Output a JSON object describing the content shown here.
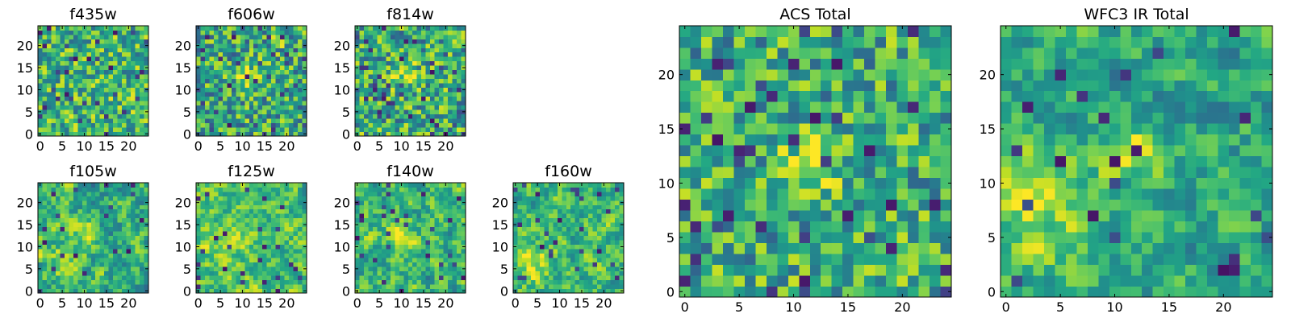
{
  "chart_data": [
    {
      "type": "heatmap",
      "title": "f435w",
      "xticks": [
        0,
        5,
        10,
        15,
        20
      ],
      "yticks": [
        0,
        5,
        10,
        15,
        20
      ],
      "xlim": [
        -0.5,
        24.5
      ],
      "ylim": [
        -0.5,
        24.5
      ],
      "grid": false,
      "colormap": "viridis",
      "values": "25x25 grid of intensities; mostly mid-range green/yellow noise with scattered dark-blue low pixels, no strong central source"
    },
    {
      "type": "heatmap",
      "title": "f606w",
      "xticks": [
        0,
        5,
        10,
        15,
        20
      ],
      "yticks": [
        0,
        5,
        10,
        15,
        20
      ],
      "xlim": [
        -0.5,
        24.5
      ],
      "ylim": [
        -0.5,
        24.5
      ],
      "grid": false,
      "colormap": "viridis",
      "values": "25x25 grid; noisy background with a slight bright patch near x≈12, y≈13"
    },
    {
      "type": "heatmap",
      "title": "f814w",
      "xticks": [
        0,
        5,
        10,
        15,
        20
      ],
      "yticks": [
        0,
        5,
        10,
        15,
        20
      ],
      "xlim": [
        -0.5,
        24.5
      ],
      "ylim": [
        -0.5,
        24.5
      ],
      "grid": false,
      "colormap": "viridis",
      "values": "25x25 grid; noisy background with a faint bright patch near x≈11, y≈13"
    },
    {
      "type": "heatmap",
      "title": "f105w",
      "xticks": [
        0,
        5,
        10,
        15,
        20
      ],
      "yticks": [
        0,
        5,
        10,
        15,
        20
      ],
      "xlim": [
        -0.5,
        24.5
      ],
      "ylim": [
        -0.5,
        24.5
      ],
      "grid": false,
      "colormap": "viridis",
      "values": "25x25 grid; smoother texture, bright clump near x≈11, y≈13 and bright lower-left region"
    },
    {
      "type": "heatmap",
      "title": "f125w",
      "xticks": [
        0,
        5,
        10,
        15,
        20
      ],
      "yticks": [
        0,
        5,
        10,
        15,
        20
      ],
      "xlim": [
        -0.5,
        24.5
      ],
      "ylim": [
        -0.5,
        24.5
      ],
      "grid": false,
      "colormap": "viridis",
      "values": "25x25 grid; smooth yellow-green field, brightest toward left-center"
    },
    {
      "type": "heatmap",
      "title": "f140w",
      "xticks": [
        0,
        5,
        10,
        15,
        20
      ],
      "yticks": [
        0,
        5,
        10,
        15,
        20
      ],
      "xlim": [
        -0.5,
        24.5
      ],
      "ylim": [
        -0.5,
        24.5
      ],
      "grid": false,
      "colormap": "viridis",
      "values": "25x25 grid; bright band near y≈13 across center"
    },
    {
      "type": "heatmap",
      "title": "f160w",
      "xticks": [
        0,
        5,
        10,
        15,
        20
      ],
      "yticks": [
        0,
        5,
        10,
        15,
        20
      ],
      "xlim": [
        -0.5,
        24.5
      ],
      "ylim": [
        -0.5,
        24.5
      ],
      "grid": false,
      "colormap": "viridis",
      "values": "25x25 grid; bright blob near x≈5, y≈6"
    },
    {
      "type": "heatmap",
      "title": "ACS Total",
      "xticks": [
        0,
        5,
        10,
        15,
        20
      ],
      "yticks": [
        0,
        5,
        10,
        15,
        20
      ],
      "xlim": [
        -0.5,
        24.5
      ],
      "ylim": [
        -0.5,
        24.5
      ],
      "grid": false,
      "colormap": "viridis",
      "values": "25x25 grid; bright source near x≈12, y≈12 on noisy background"
    },
    {
      "type": "heatmap",
      "title": "WFC3 IR Total",
      "xticks": [
        0,
        5,
        10,
        15,
        20
      ],
      "yticks": [
        0,
        5,
        10,
        15,
        20
      ],
      "xlim": [
        -0.5,
        24.5
      ],
      "ylim": [
        -0.5,
        24.5
      ],
      "grid": false,
      "colormap": "viridis",
      "values": "25x25 grid; bright source near x≈12, y≈13 and broad bright region around x≈3, y≈8; dark pixels near top (x≈9–12, y≈19–21)"
    }
  ]
}
